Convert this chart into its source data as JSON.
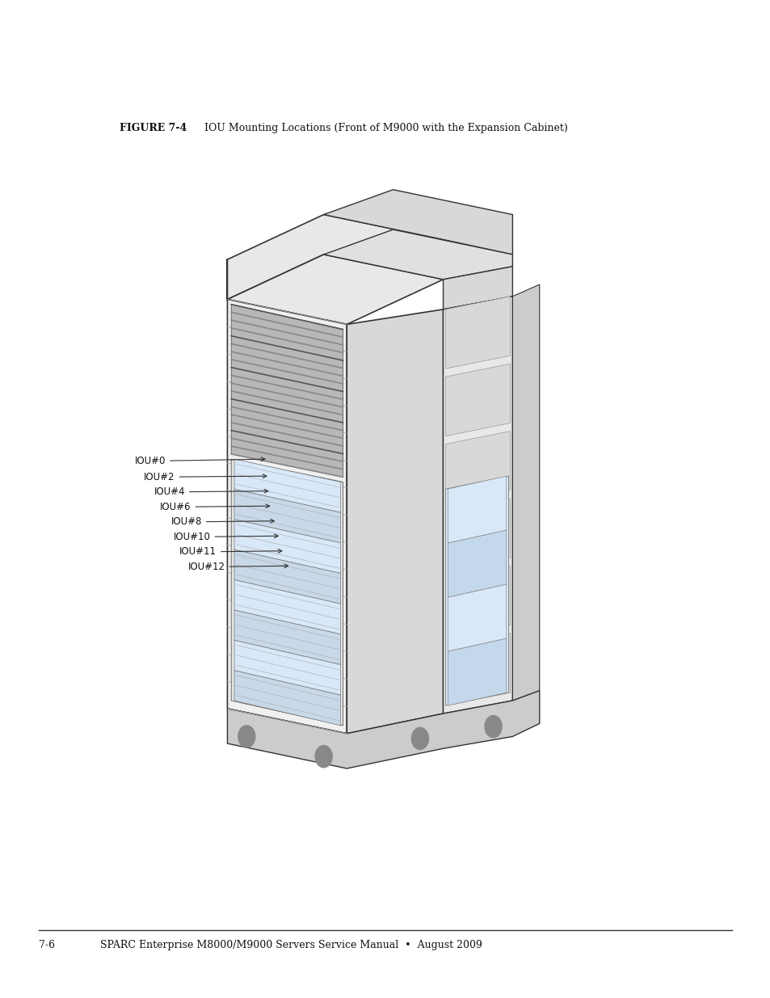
{
  "title_bold": "FIGURE 7-4",
  "title_normal": "IOU Mounting Locations (Front of M9000 with the Expansion Cabinet)",
  "footer_left": "7-6",
  "footer_text": "SPARC Enterprise M8000/M9000 Servers Service Manual  •  August 2009",
  "background_color": "#ffffff"
}
